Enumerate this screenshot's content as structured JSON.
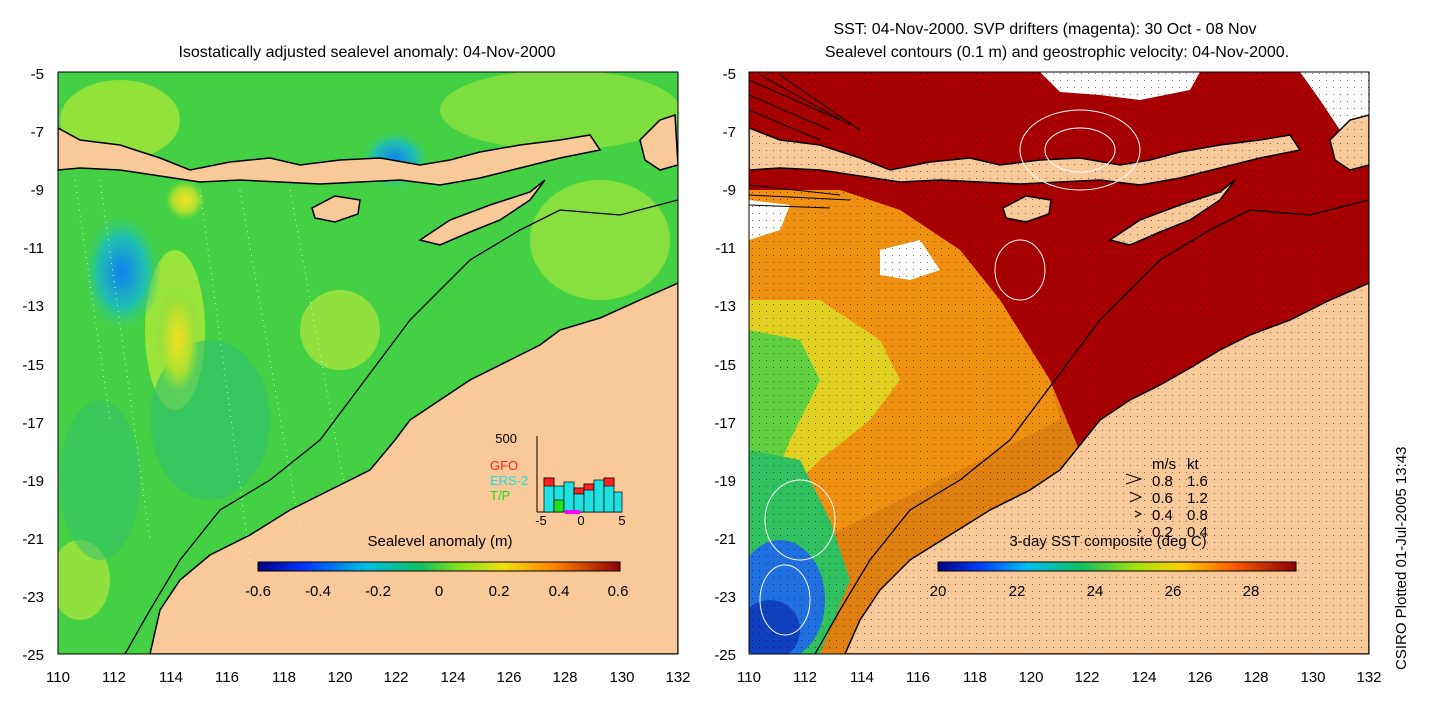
{
  "left_panel": {
    "title": "Isostatically adjusted sealevel anomaly: 04-Nov-2000",
    "colorbar_label": "Sealevel anomaly (m)",
    "colorbar_ticks": [
      "-0.6",
      "-0.4",
      "-0.2",
      "0",
      "0.2",
      "0.4",
      "0.6"
    ],
    "histogram": {
      "ymax_label": "500",
      "x_ticks": [
        "-5",
        "0",
        "5"
      ],
      "legend": [
        {
          "label": "GFO",
          "color": "#ff2020"
        },
        {
          "label": "ERS-2",
          "color": "#20e0e0"
        },
        {
          "label": "T/P",
          "color": "#20e020"
        }
      ]
    }
  },
  "right_panel": {
    "title_line1": "SST: 04-Nov-2000. SVP drifters (magenta): 30 Oct - 08 Nov",
    "title_line2": "Sealevel contours (0.1 m) and geostrophic velocity: 04-Nov-2000.",
    "colorbar_label": "3-day SST composite (deg C)",
    "colorbar_ticks": [
      "20",
      "22",
      "24",
      "26",
      "28"
    ],
    "velocity_legend": {
      "header_ms": "m/s",
      "header_kt": "kt",
      "rows": [
        {
          "ms": "0.8",
          "kt": "1.6"
        },
        {
          "ms": "0.6",
          "kt": "1.2"
        },
        {
          "ms": "0.4",
          "kt": "0.8"
        },
        {
          "ms": "0.2",
          "kt": "0.4"
        }
      ]
    }
  },
  "axes": {
    "y_ticks": [
      "-5",
      "-7",
      "-9",
      "-11",
      "-13",
      "-15",
      "-17",
      "-19",
      "-21",
      "-23",
      "-25"
    ],
    "x_ticks": [
      "110",
      "112",
      "114",
      "116",
      "118",
      "120",
      "122",
      "124",
      "126",
      "128",
      "130",
      "132"
    ]
  },
  "footer": "CSIRO Plotted 01-Jul-2005 13:43",
  "colors": {
    "land": "#f9c99a",
    "ocean_green": "#40d040",
    "ocean_lightgreen": "#90e040",
    "warm_red": "#a80000"
  }
}
